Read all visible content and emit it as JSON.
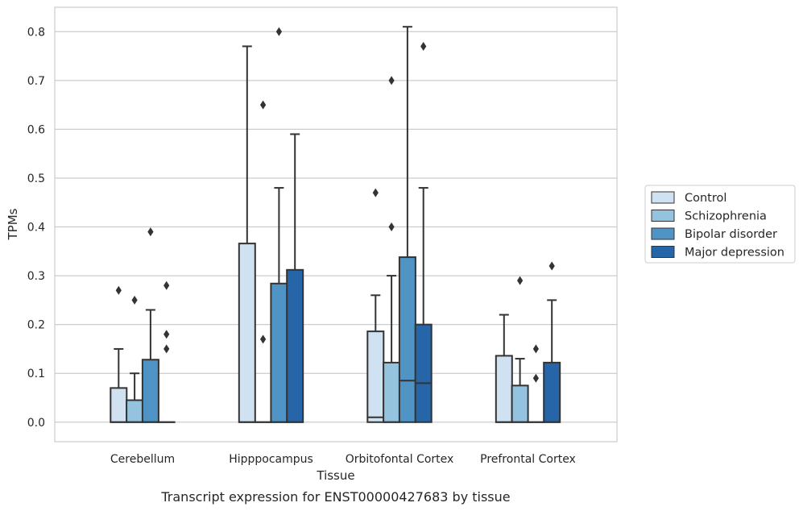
{
  "caption": "Transcript expression for ENST00000427683 by tissue",
  "colors": {
    "Control": "#d0e1f1",
    "Schizophrenia": "#93c3df",
    "Bipolar disorder": "#4f94c4",
    "Major depression": "#2665a8",
    "edge": "#333333",
    "grid": "#cccccc",
    "frame": "#cccccc"
  },
  "chart_data": {
    "type": "box",
    "xlabel": "Tissue",
    "ylabel": "TPMs",
    "ylim": [
      -0.04,
      0.85
    ],
    "yticks": [
      0.0,
      0.1,
      0.2,
      0.3,
      0.4,
      0.5,
      0.6,
      0.7,
      0.8
    ],
    "ytick_labels": [
      "0.0",
      "0.1",
      "0.2",
      "0.3",
      "0.4",
      "0.5",
      "0.6",
      "0.7",
      "0.8"
    ],
    "grid": true,
    "legend_position": "right",
    "categories": [
      "Cerebellum",
      "Hipppocampus",
      "Orbitofontal Cortex",
      "Prefrontal Cortex"
    ],
    "series": [
      {
        "name": "Control",
        "boxes": [
          {
            "q1": 0.0,
            "median": 0.0,
            "q3": 0.07,
            "whisker_low": 0.0,
            "whisker_high": 0.15,
            "outliers": [
              0.27
            ]
          },
          {
            "q1": 0.0,
            "median": 0.0,
            "q3": 0.366,
            "whisker_low": 0.0,
            "whisker_high": 0.77,
            "outliers": []
          },
          {
            "q1": 0.0,
            "median": 0.01,
            "q3": 0.186,
            "whisker_low": 0.0,
            "whisker_high": 0.26,
            "outliers": [
              0.47
            ]
          },
          {
            "q1": 0.0,
            "median": 0.0,
            "q3": 0.136,
            "whisker_low": 0.0,
            "whisker_high": 0.22,
            "outliers": []
          }
        ]
      },
      {
        "name": "Schizophrenia",
        "boxes": [
          {
            "q1": 0.0,
            "median": 0.0,
            "q3": 0.045,
            "whisker_low": 0.0,
            "whisker_high": 0.1,
            "outliers": [
              0.25
            ]
          },
          {
            "q1": 0.0,
            "median": 0.0,
            "q3": 0.0,
            "whisker_low": 0.0,
            "whisker_high": 0.0,
            "outliers": [
              0.17,
              0.65
            ]
          },
          {
            "q1": 0.0,
            "median": 0.0,
            "q3": 0.122,
            "whisker_low": 0.0,
            "whisker_high": 0.3,
            "outliers": [
              0.4,
              0.7
            ]
          },
          {
            "q1": 0.0,
            "median": 0.0,
            "q3": 0.075,
            "whisker_low": 0.0,
            "whisker_high": 0.13,
            "outliers": [
              0.29
            ]
          }
        ]
      },
      {
        "name": "Bipolar disorder",
        "boxes": [
          {
            "q1": 0.0,
            "median": 0.0,
            "q3": 0.128,
            "whisker_low": 0.0,
            "whisker_high": 0.23,
            "outliers": [
              0.39
            ]
          },
          {
            "q1": 0.0,
            "median": 0.0,
            "q3": 0.284,
            "whisker_low": 0.0,
            "whisker_high": 0.48,
            "outliers": [
              0.8
            ]
          },
          {
            "q1": 0.0,
            "median": 0.085,
            "q3": 0.338,
            "whisker_low": 0.0,
            "whisker_high": 0.81,
            "outliers": []
          },
          {
            "q1": 0.0,
            "median": 0.0,
            "q3": 0.0,
            "whisker_low": 0.0,
            "whisker_high": 0.0,
            "outliers": [
              0.09,
              0.15
            ]
          }
        ]
      },
      {
        "name": "Major depression",
        "boxes": [
          {
            "q1": 0.0,
            "median": 0.0,
            "q3": 0.0,
            "whisker_low": 0.0,
            "whisker_high": 0.0,
            "outliers": [
              0.15,
              0.18,
              0.28
            ]
          },
          {
            "q1": 0.0,
            "median": 0.0,
            "q3": 0.312,
            "whisker_low": 0.0,
            "whisker_high": 0.59,
            "outliers": []
          },
          {
            "q1": 0.0,
            "median": 0.08,
            "q3": 0.2,
            "whisker_low": 0.0,
            "whisker_high": 0.48,
            "outliers": [
              0.77
            ]
          },
          {
            "q1": 0.0,
            "median": 0.0,
            "q3": 0.122,
            "whisker_low": 0.0,
            "whisker_high": 0.25,
            "outliers": [
              0.32
            ]
          }
        ]
      }
    ]
  }
}
